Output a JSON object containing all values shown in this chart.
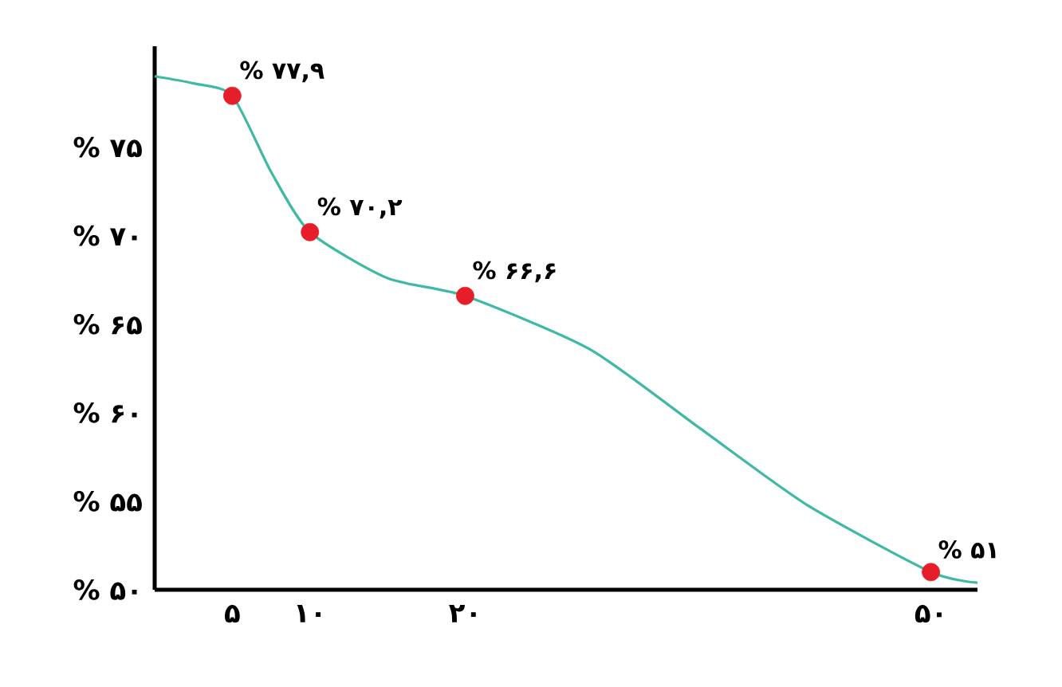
{
  "chart_data": {
    "type": "line",
    "xlim": [
      0,
      53
    ],
    "ylim": [
      50,
      80.7
    ],
    "xticks": [
      {
        "value": 5,
        "label": "۵"
      },
      {
        "value": 10,
        "label": "۱۰"
      },
      {
        "value": 20,
        "label": "۲۰"
      },
      {
        "value": 50,
        "label": "۵۰"
      }
    ],
    "yticks": [
      {
        "value": 50,
        "label": "% ۵۰"
      },
      {
        "value": 55,
        "label": "% ۵۵"
      },
      {
        "value": 60,
        "label": "% ۶۰"
      },
      {
        "value": 65,
        "label": "% ۶۵"
      },
      {
        "value": 70,
        "label": "% ۷۰"
      },
      {
        "value": 75,
        "label": "% ۷۵"
      }
    ],
    "grid": false,
    "series": [
      {
        "color": "#3fb8a6",
        "marker": "none",
        "x": [
          0,
          2.5,
          5,
          7.5,
          10,
          15,
          20,
          28,
          35,
          42,
          50,
          53
        ],
        "values": [
          79,
          78.6,
          77.9,
          73.6,
          70.2,
          67.6,
          66.6,
          63.6,
          59.2,
          54.8,
          51,
          50.4
        ]
      },
      {
        "type": "scatter",
        "color": "#e61e2a",
        "marker": "circle",
        "x": [
          5,
          10,
          20,
          50
        ],
        "values": [
          77.9,
          70.2,
          66.6,
          51
        ],
        "value_labels": [
          "% ۷۷,۹",
          "% ۷۰,۲",
          "% ۶۶,۶",
          "% ۵۱"
        ]
      }
    ]
  }
}
